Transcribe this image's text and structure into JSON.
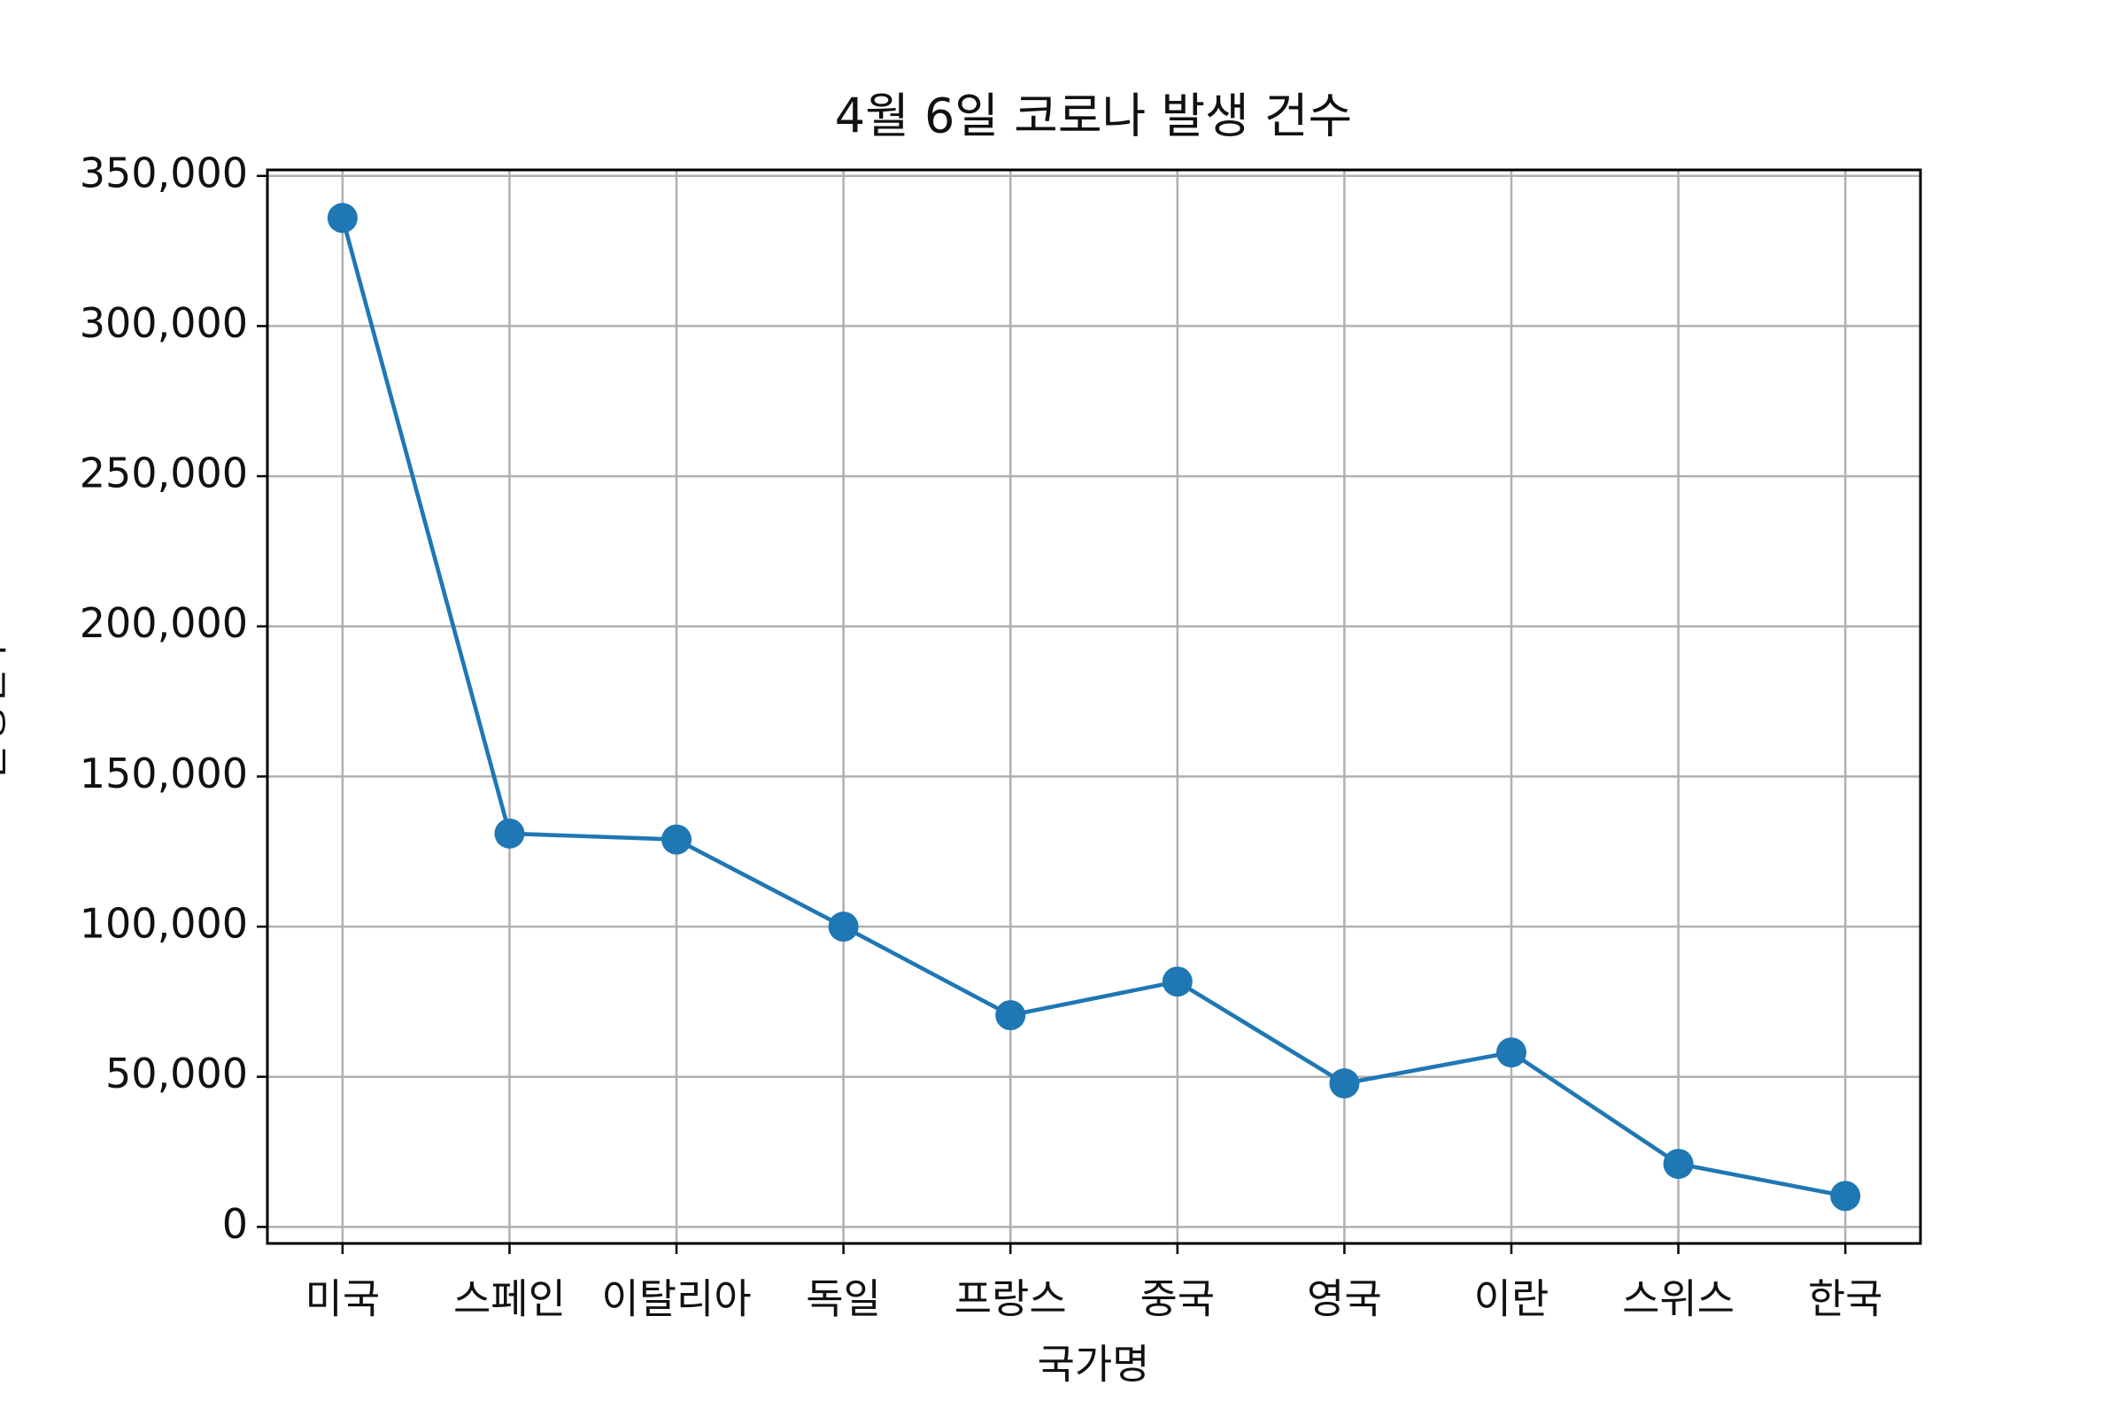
{
  "chart_data": {
    "type": "line",
    "title": "4월 6일 코로나 발생 건수",
    "x_label": "국가명",
    "y_label": "발생건수",
    "categories": [
      "미국",
      "스페인",
      "이탈리아",
      "독일",
      "프랑스",
      "중국",
      "영국",
      "이란",
      "스위스",
      "한국"
    ],
    "series": [
      {
        "name": "발생건수",
        "color": "#1f77b4",
        "values": [
          336000,
          131000,
          129000,
          100000,
          70500,
          81700,
          47800,
          58100,
          21000,
          10300
        ]
      }
    ],
    "ylim": [
      -5500,
      352000
    ],
    "yticks": [
      0,
      {
        "value": 50000,
        "label": "50,000"
      },
      {
        "value": 100000,
        "label": "100,000"
      },
      {
        "value": 150000,
        "label": "150,000"
      },
      {
        "value": 200000,
        "label": "200,000"
      },
      {
        "value": 250000,
        "label": "250,000"
      },
      {
        "value": 300000,
        "label": "300,000"
      },
      {
        "value": 350000,
        "label": "350,000"
      }
    ],
    "grid": true
  }
}
